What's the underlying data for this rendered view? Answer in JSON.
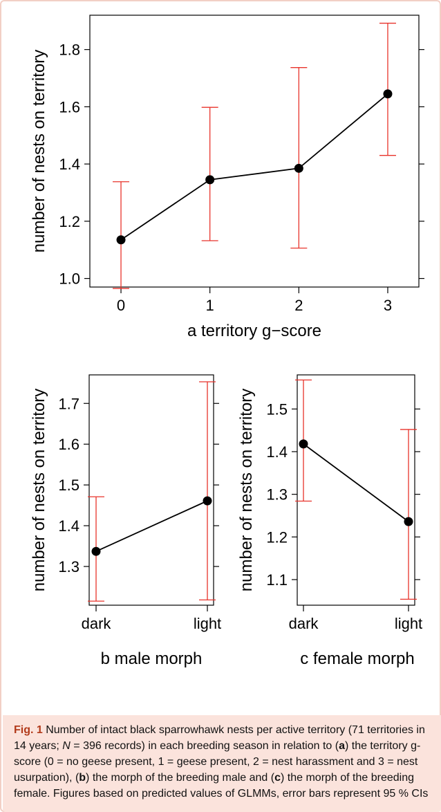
{
  "chart_data": [
    {
      "panel": "a",
      "type": "line",
      "x": [
        0,
        1,
        2,
        3
      ],
      "y": [
        1.135,
        1.345,
        1.385,
        1.645
      ],
      "ci_low": [
        0.965,
        1.132,
        1.106,
        1.43
      ],
      "ci_high": [
        1.338,
        1.598,
        1.737,
        1.892
      ],
      "xticks": [
        "0",
        "1",
        "2",
        "3"
      ],
      "yticks": [
        "1.0",
        "1.2",
        "1.4",
        "1.6",
        "1.8"
      ],
      "xlabel": "a  territory g−score",
      "ylabel": "number of nests on territory",
      "ylim": [
        0.97,
        1.92
      ],
      "errorbar_color": "#e8322a",
      "line_color": "#000000"
    },
    {
      "panel": "b",
      "type": "line",
      "categories": [
        "dark",
        "light"
      ],
      "y": [
        1.337,
        1.461
      ],
      "ci_low": [
        1.215,
        1.218
      ],
      "ci_high": [
        1.471,
        1.753
      ],
      "yticks": [
        "1.3",
        "1.4",
        "1.5",
        "1.6",
        "1.7"
      ],
      "xlabel": "b  male morph",
      "ylabel": "number of nests on territory",
      "ylim": [
        1.205,
        1.77
      ],
      "errorbar_color": "#e8322a",
      "line_color": "#000000"
    },
    {
      "panel": "c",
      "type": "line",
      "categories": [
        "dark",
        "light"
      ],
      "y": [
        1.418,
        1.236
      ],
      "ci_low": [
        1.284,
        1.054
      ],
      "ci_high": [
        1.568,
        1.452
      ],
      "yticks": [
        "1.1",
        "1.2",
        "1.3",
        "1.4",
        "1.5"
      ],
      "xlabel": "c  female morph",
      "ylabel": "number of nests on territory",
      "ylim": [
        1.04,
        1.58
      ],
      "errorbar_color": "#e8322a",
      "line_color": "#000000"
    }
  ],
  "caption": {
    "label": "Fig. 1",
    "p1": " Number of intact black sparrowhawk nests per active territory (71 territories in 14 years; ",
    "N": "N",
    "p2": " = 396 records) in each breeding season in relation to (",
    "a": "a",
    "p3": ") the territory g-score (0 = no geese present, 1 = geese present, 2 = nest harassment and 3 = nest usurpation), (",
    "b": "b",
    "p4": ") the morph of the breeding male and (",
    "c": "c",
    "p5": ") the morph of the breeding female. Figures based on predicted values of GLMMs, error bars represent 95 % CIs"
  }
}
